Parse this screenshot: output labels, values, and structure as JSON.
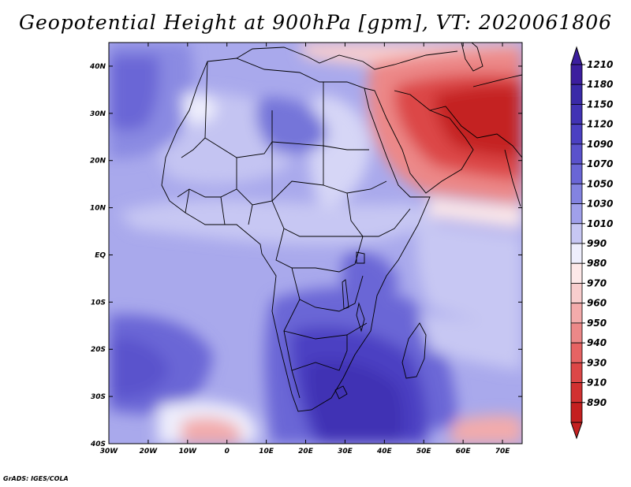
{
  "title": "Geopotential Height at 900hPa [gpm], VT: 2020061806",
  "credit": "GrADS: IGES/COLA",
  "chart_data": {
    "type": "heatmap",
    "variable": "Geopotential Height",
    "level": "900hPa",
    "units": "gpm",
    "valid_time": "2020061806",
    "lon_range": [
      -30,
      75
    ],
    "lat_range": [
      -40,
      45
    ],
    "x_tick_labels": [
      "30W",
      "20W",
      "10W",
      "0",
      "10E",
      "20E",
      "30E",
      "40E",
      "50E",
      "60E",
      "70E"
    ],
    "x_tick_values": [
      -30,
      -20,
      -10,
      0,
      10,
      20,
      30,
      40,
      50,
      60,
      70
    ],
    "y_tick_labels": [
      "40S",
      "30S",
      "20S",
      "10S",
      "EQ",
      "10N",
      "20N",
      "30N",
      "40N"
    ],
    "y_tick_values": [
      -40,
      -30,
      -20,
      -10,
      0,
      10,
      20,
      30,
      40
    ],
    "colorbar": {
      "labels": [
        "1210",
        "1180",
        "1150",
        "1120",
        "1090",
        "1070",
        "1050",
        "1030",
        "1010",
        "990",
        "980",
        "970",
        "960",
        "950",
        "940",
        "930",
        "910",
        "890"
      ],
      "colors": [
        "#3c1e9e",
        "#3a2aa8",
        "#4133b4",
        "#4b40c2",
        "#5a52cc",
        "#6a66d6",
        "#8383e0",
        "#a0a0ea",
        "#c7c7f3",
        "#eeeefc",
        "#fde8e8",
        "#f8cdcd",
        "#f3abab",
        "#ec8888",
        "#e66363",
        "#dc4747",
        "#d13131",
        "#c42020"
      ]
    },
    "features": [
      {
        "name": "Arabian Peninsula / Persian Gulf low",
        "approx_min": 930
      },
      {
        "name": "Southern Africa / South Indian Ocean high",
        "approx_max": 1150
      },
      {
        "name": "South Atlantic high",
        "approx_max": 1120
      },
      {
        "name": "Azores high",
        "approx_max": 1090
      },
      {
        "name": "Southern Ocean lows near 40S",
        "approx_min": 980
      }
    ]
  }
}
